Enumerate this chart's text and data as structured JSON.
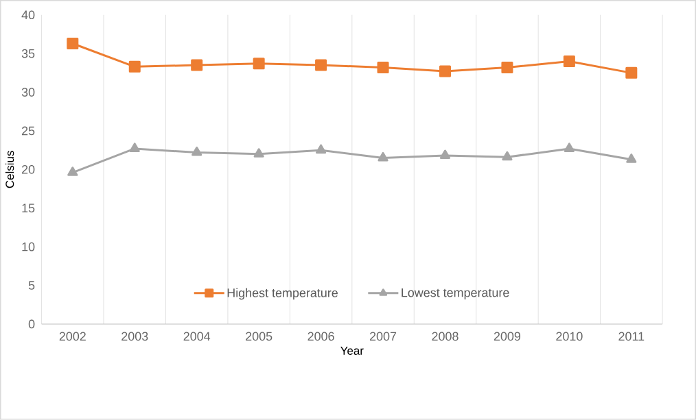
{
  "chart_data": {
    "type": "line",
    "xlabel": "Year",
    "ylabel": "Celsius",
    "categories": [
      "2002",
      "2003",
      "2004",
      "2005",
      "2006",
      "2007",
      "2008",
      "2009",
      "2010",
      "2011"
    ],
    "series": [
      {
        "name": "Highest temperature",
        "color": "#ed7d31",
        "marker": "square",
        "values": [
          36.3,
          33.3,
          33.5,
          33.7,
          33.5,
          33.2,
          32.7,
          33.2,
          34.0,
          32.5
        ]
      },
      {
        "name": "Lowest temperature",
        "color": "#a5a5a5",
        "marker": "triangle",
        "values": [
          19.6,
          22.7,
          22.2,
          22.0,
          22.5,
          21.5,
          21.8,
          21.6,
          22.7,
          21.3
        ]
      }
    ],
    "ylim": [
      0,
      40
    ],
    "yticks": [
      0,
      5,
      10,
      15,
      20,
      25,
      30,
      35,
      40
    ],
    "grid": "x",
    "legend": "bottom"
  }
}
